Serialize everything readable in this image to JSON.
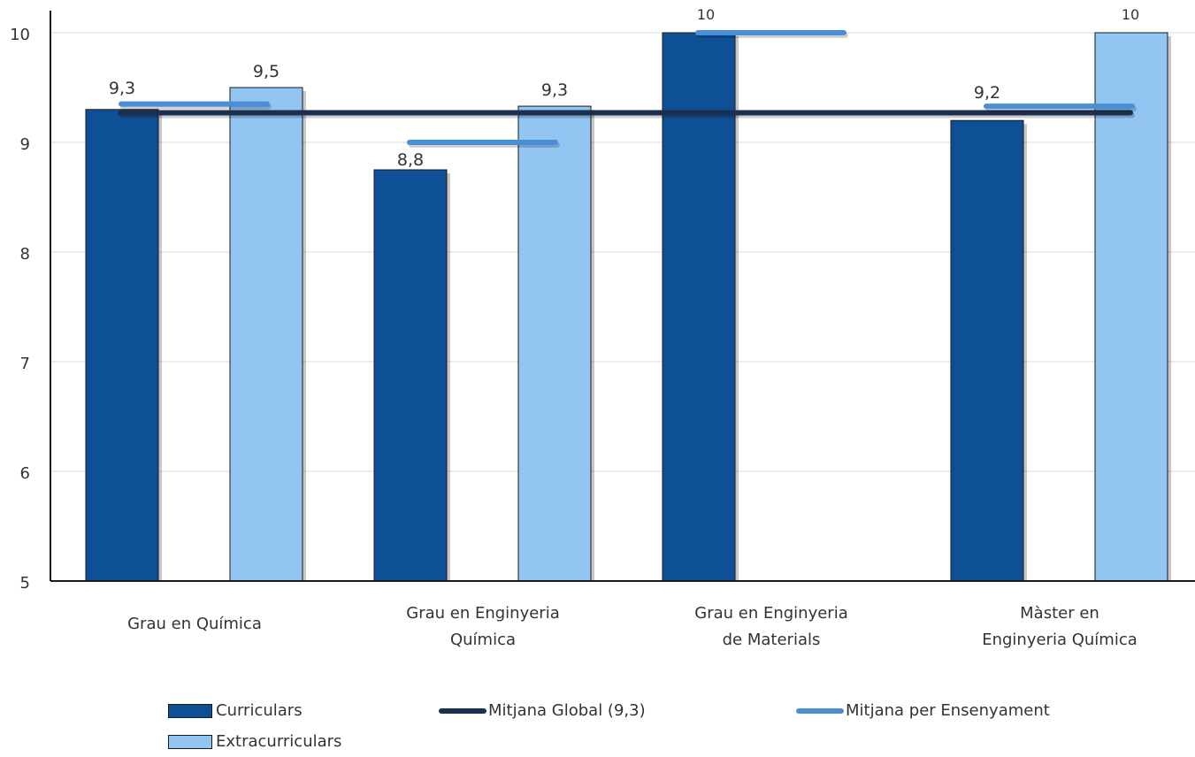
{
  "chart_data": {
    "type": "bar",
    "categories": [
      [
        "Grau en Química"
      ],
      [
        "Grau en Enginyeria",
        "Química"
      ],
      [
        "Grau en Enginyeria",
        "de Materials"
      ],
      [
        "Màster en",
        "Enginyeria Química"
      ]
    ],
    "series": [
      {
        "name": "Curriculars",
        "values": [
          9.3,
          8.75,
          10,
          9.2
        ],
        "labels": [
          "9,3",
          "8,8",
          "10",
          "9,2"
        ],
        "color": "#0e5096"
      },
      {
        "name": "Extracurriculars",
        "values": [
          9.5,
          9.33,
          null,
          10
        ],
        "labels": [
          "9,5",
          "9,3",
          "",
          "10"
        ],
        "color": "#93c5f3"
      }
    ],
    "lines": [
      {
        "name": "Mitjana Global (9,3)",
        "value": 9.27,
        "color": "#1b2f4e"
      },
      {
        "name": "Mitjana per Ensenyament",
        "values": [
          9.35,
          9.0,
          10.0,
          9.33
        ],
        "color": "#4a8ed6"
      }
    ],
    "ylim": [
      5,
      10
    ],
    "yticks": [
      "5",
      "6",
      "7",
      "8",
      "9",
      "10"
    ],
    "grid": true,
    "legend_position": "bottom"
  }
}
